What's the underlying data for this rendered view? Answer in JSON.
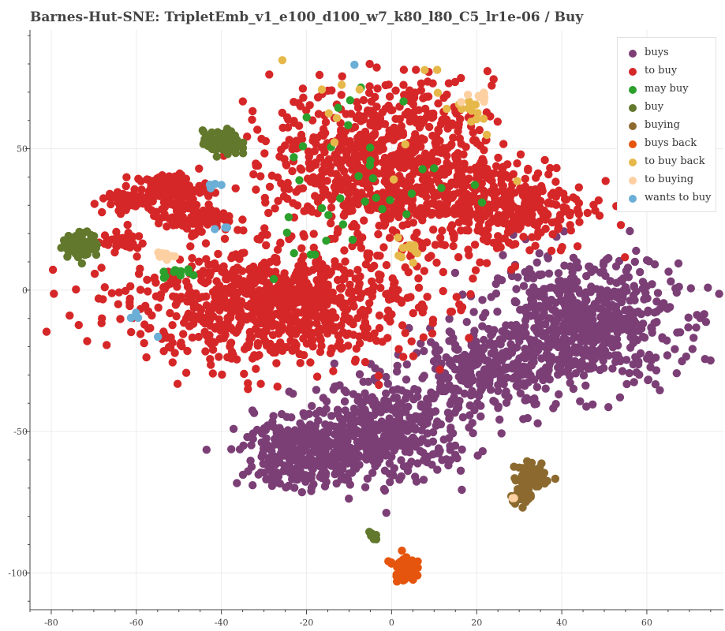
{
  "title": "Barnes-Hut-SNE: TripletEmb_v1_e100_d100_w7_k80_l80_C5_lr1e-06 / Buy",
  "chart_data": {
    "type": "scatter",
    "title": "Barnes-Hut-SNE: TripletEmb_v1_e100_d100_w7_k80_l80_C5_lr1e-06 / Buy",
    "xlabel": "",
    "ylabel": "",
    "xlim": [
      -85,
      78
    ],
    "ylim": [
      -113,
      92
    ],
    "x_ticks": [
      -80,
      -60,
      -40,
      -20,
      0,
      20,
      40,
      60
    ],
    "y_ticks": [
      50,
      0,
      -50,
      -100
    ],
    "grid": true,
    "legend_position": "top-right",
    "series": [
      {
        "name": "buys",
        "color": "#7b3f76",
        "clusters": [
          {
            "cx": 45,
            "cy": -12,
            "sx": 13,
            "sy": 13,
            "n": 650
          },
          {
            "cx": 22,
            "cy": -28,
            "sx": 10,
            "sy": 8,
            "n": 250
          },
          {
            "cx": -2,
            "cy": -50,
            "sx": 12,
            "sy": 10,
            "n": 450
          },
          {
            "cx": -20,
            "cy": -58,
            "sx": 9,
            "sy": 7,
            "n": 300
          }
        ]
      },
      {
        "name": "to buy",
        "color": "#d62728",
        "clusters": [
          {
            "cx": -28,
            "cy": -5,
            "sx": 20,
            "sy": 12,
            "n": 900
          },
          {
            "cx": -2,
            "cy": 45,
            "sx": 15,
            "sy": 16,
            "n": 800
          },
          {
            "cx": 26,
            "cy": 30,
            "sx": 12,
            "sy": 10,
            "n": 350
          },
          {
            "cx": -52,
            "cy": 36,
            "sx": 5,
            "sy": 3,
            "n": 120
          },
          {
            "cx": -47,
            "cy": 26,
            "sx": 5,
            "sy": 3,
            "n": 100
          },
          {
            "cx": -63,
            "cy": 32,
            "sx": 4,
            "sy": 2,
            "n": 60
          },
          {
            "cx": -63,
            "cy": 17,
            "sx": 3,
            "sy": 2,
            "n": 40
          }
        ]
      },
      {
        "name": "may buy",
        "color": "#2ca02c",
        "clusters": [
          {
            "cx": -5,
            "cy": 40,
            "sx": 12,
            "sy": 18,
            "n": 30
          },
          {
            "cx": -50,
            "cy": 6,
            "sx": 3,
            "sy": 1.5,
            "n": 12
          },
          {
            "cx": -20,
            "cy": 20,
            "sx": 8,
            "sy": 8,
            "n": 8
          }
        ]
      },
      {
        "name": "buy",
        "color": "#62782c",
        "clusters": [
          {
            "cx": -40,
            "cy": 52,
            "sx": 2.5,
            "sy": 2.5,
            "n": 90
          },
          {
            "cx": -73,
            "cy": 16,
            "sx": 2.5,
            "sy": 2.5,
            "n": 90
          },
          {
            "cx": -4,
            "cy": -87,
            "sx": 1.2,
            "sy": 1,
            "n": 8
          }
        ]
      },
      {
        "name": "buying",
        "color": "#8c6a2f",
        "clusters": [
          {
            "cx": 33,
            "cy": -66,
            "sx": 2.5,
            "sy": 3,
            "n": 60
          },
          {
            "cx": 30,
            "cy": -73,
            "sx": 1.5,
            "sy": 1.5,
            "n": 20
          }
        ]
      },
      {
        "name": "buys back",
        "color": "#e6550d",
        "clusters": [
          {
            "cx": 3,
            "cy": -98,
            "sx": 1.5,
            "sy": 2.8,
            "n": 80
          }
        ]
      },
      {
        "name": "to buy back",
        "color": "#e6b84a",
        "clusters": [
          {
            "cx": 4,
            "cy": 15,
            "sx": 2,
            "sy": 2,
            "n": 12
          },
          {
            "cx": 19,
            "cy": 64,
            "sx": 2,
            "sy": 3,
            "n": 10
          },
          {
            "cx": 0,
            "cy": 55,
            "sx": 15,
            "sy": 14,
            "n": 16
          }
        ]
      },
      {
        "name": "to buying",
        "color": "#fdd0a2",
        "clusters": [
          {
            "cx": -53,
            "cy": 12,
            "sx": 1.5,
            "sy": 1.5,
            "n": 12
          },
          {
            "cx": 20,
            "cy": 68,
            "sx": 1.5,
            "sy": 2,
            "n": 8
          },
          {
            "cx": 29,
            "cy": -74,
            "sx": 0.5,
            "sy": 0.5,
            "n": 2
          }
        ]
      },
      {
        "name": "wants to buy",
        "color": "#6baed6",
        "clusters": [
          {
            "cx": -42,
            "cy": 37,
            "sx": 1,
            "sy": 1,
            "n": 4
          },
          {
            "cx": -60,
            "cy": -9,
            "sx": 1.5,
            "sy": 1.5,
            "n": 3
          },
          {
            "cx": -40,
            "cy": 22,
            "sx": 1,
            "sy": 1,
            "n": 3
          },
          {
            "cx": -9,
            "cy": 79,
            "sx": 0.5,
            "sy": 0.5,
            "n": 1
          },
          {
            "cx": -55,
            "cy": -16,
            "sx": 0.5,
            "sy": 0.5,
            "n": 1
          }
        ]
      }
    ]
  }
}
